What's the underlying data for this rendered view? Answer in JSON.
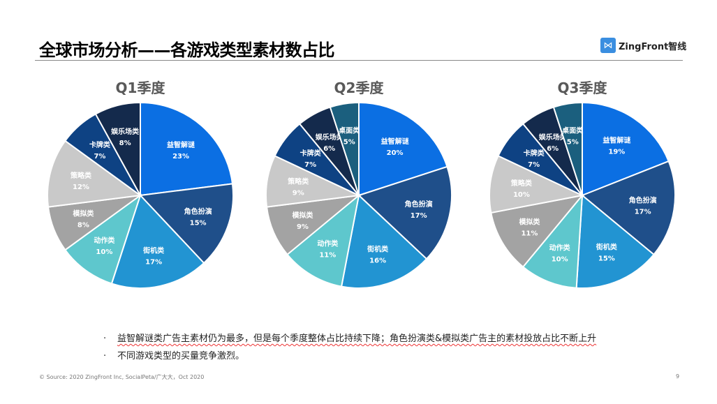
{
  "title": "全球市场分析——各游戏类型素材数占比",
  "logo": {
    "text": "ZingFront智线",
    "icon": "zingfront-logo-icon"
  },
  "colors": {
    "益智解谜": "#0b6fe3",
    "角色扮演": "#1f4f8a",
    "街机类": "#2294d2",
    "动作类": "#5ec7cd",
    "模拟类": "#a3a3a3",
    "策略类": "#c9c9c9",
    "卡牌类": "#0e4283",
    "娱乐场类": "#142a4c",
    "桌面类": "#1b5f7e"
  },
  "chart_data": [
    {
      "type": "pie",
      "title": "Q1季度",
      "categories": [
        "益智解谜",
        "角色扮演",
        "街机类",
        "动作类",
        "模拟类",
        "策略类",
        "卡牌类",
        "娱乐场类"
      ],
      "values": [
        23,
        15,
        17,
        10,
        8,
        12,
        7,
        8
      ],
      "labels": [
        "23%",
        "15%",
        "17%",
        "10%",
        "8%",
        "12%",
        "7%",
        "8%"
      ]
    },
    {
      "type": "pie",
      "title": "Q2季度",
      "categories": [
        "益智解谜",
        "角色扮演",
        "街机类",
        "动作类",
        "模拟类",
        "策略类",
        "卡牌类",
        "娱乐场类",
        "桌面类"
      ],
      "values": [
        20,
        17,
        16,
        11,
        9,
        9,
        7,
        6,
        5
      ],
      "labels": [
        "20%",
        "17%",
        "16%",
        "11%",
        "9%",
        "9%",
        "7%",
        "6%",
        "5%"
      ]
    },
    {
      "type": "pie",
      "title": "Q3季度",
      "categories": [
        "益智解谜",
        "角色扮演",
        "街机类",
        "动作类",
        "模拟类",
        "策略类",
        "卡牌类",
        "娱乐场类",
        "桌面类"
      ],
      "values": [
        19,
        17,
        15,
        10,
        11,
        10,
        7,
        6,
        5
      ],
      "labels": [
        "19%",
        "17%",
        "15%",
        "10%",
        "11%",
        "10%",
        "7%",
        "6%",
        "5%"
      ]
    }
  ],
  "bullets": [
    "益智解谜类广告主素材仍为最多，但是每个季度整体占比持续下降；角色扮演类&模拟类广告主的素材投放占比不断上升",
    "不同游戏类型的买量竞争激烈。"
  ],
  "bullet_marker": ".",
  "source": "© Source: 2020 ZingFront Inc, SocialPeta/广大大，Oct 2020",
  "page_number": "9"
}
